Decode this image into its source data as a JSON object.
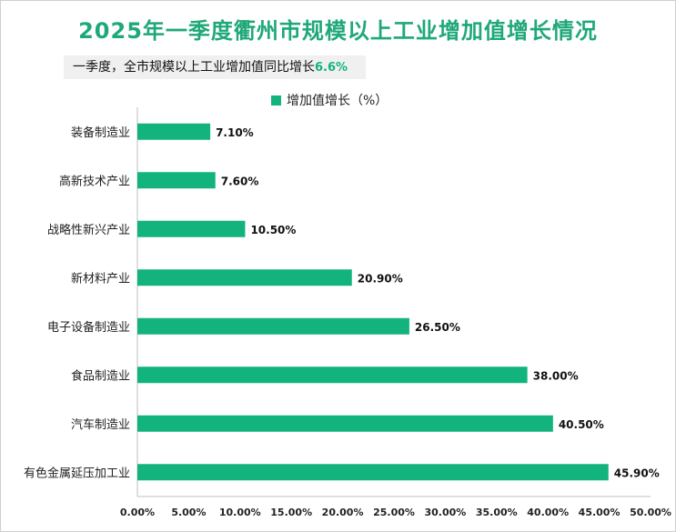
{
  "title": "2025年一季度衢州市规模以上工业增加值增长情况",
  "subtitle": {
    "text": "一季度，全市规模以上工业增加值同比增长",
    "value": "6.6%"
  },
  "colors": {
    "title": "#1fa878",
    "bar": "#13b37e"
  },
  "chart_data": {
    "type": "bar",
    "orientation": "horizontal",
    "legend": "增加值增长（%）",
    "legend_position": "top-center",
    "categories": [
      "装备制造业",
      "高新技术产业",
      "战略性新兴产业",
      "新材料产业",
      "电子设备制造业",
      "食品制造业",
      "汽车制造业",
      "有色金属延压加工业"
    ],
    "values": [
      7.1,
      7.6,
      10.5,
      20.9,
      26.5,
      38.0,
      40.5,
      45.9
    ],
    "value_labels": [
      "7.10%",
      "7.60%",
      "10.50%",
      "20.90%",
      "26.50%",
      "38.00%",
      "40.50%",
      "45.90%"
    ],
    "xlim": [
      0,
      50
    ],
    "ticks": [
      0,
      5,
      10,
      15,
      20,
      25,
      30,
      35,
      40,
      45,
      50
    ],
    "tick_labels": [
      "0.00%",
      "5.00%",
      "10.00%",
      "15.00%",
      "20.00%",
      "25.00%",
      "30.00%",
      "35.00%",
      "40.00%",
      "45.00%",
      "50.00%"
    ],
    "grid": false
  }
}
